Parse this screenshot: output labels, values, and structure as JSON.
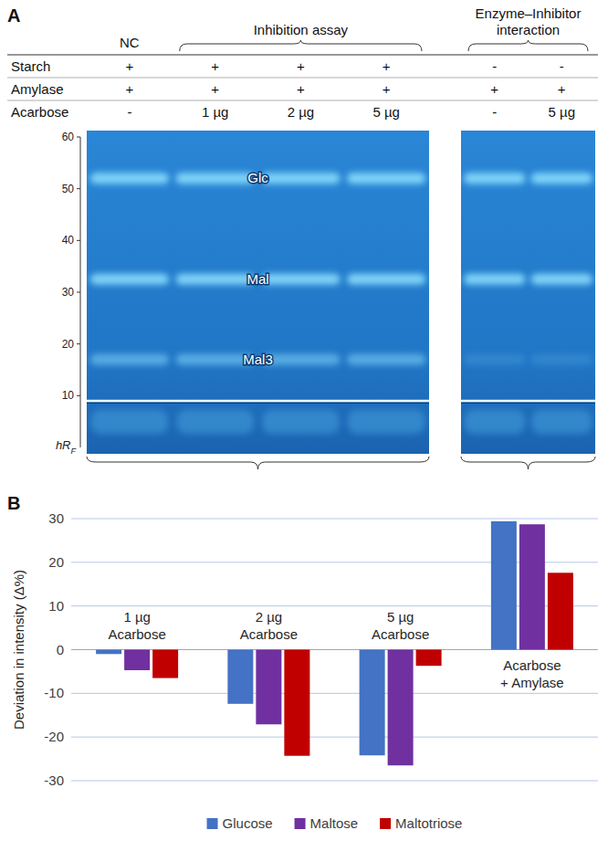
{
  "panel_a": {
    "panel_label": "A",
    "row_labels": [
      "Starch",
      "Amylase",
      "Acarbose"
    ],
    "plates": [
      {
        "groups": [
          {
            "label": "NC",
            "lanes": [
              [
                "+",
                "+",
                "-"
              ]
            ]
          },
          {
            "label": "Inhibition assay",
            "lanes": [
              [
                "+",
                "+",
                "1 µg"
              ],
              [
                "+",
                "+",
                "2 µg"
              ],
              [
                "+",
                "+",
                "5 µg"
              ]
            ]
          }
        ]
      },
      {
        "groups": [
          {
            "label": "Enzyme–Inhibitor interaction",
            "lanes": [
              [
                "-",
                "+",
                "-"
              ],
              [
                "-",
                "+",
                "5 µg"
              ]
            ]
          }
        ]
      }
    ],
    "hrf_axis": {
      "label": "hR",
      "label_sub": "F",
      "ylim": [
        0,
        60
      ],
      "yticks": [
        10,
        20,
        30,
        40,
        50,
        60
      ]
    },
    "bands": [
      {
        "label": "Glc",
        "hrf": 52
      },
      {
        "label": "Mal",
        "hrf": 32.5
      },
      {
        "label": "Mal3",
        "hrf": 17
      }
    ],
    "application_line_hrf": 9
  },
  "chart_data": {
    "type": "bar",
    "panel_label": "B",
    "y_label": "Deviation in intensity (Δ%)",
    "categories": [
      "1 µg\nAcarbose",
      "2 µg\nAcarbose",
      "5 µg\nAcarbose",
      "Acarbose\n+ Amylase"
    ],
    "series": [
      {
        "name": "Glucose",
        "color": "#4472C4",
        "values": [
          -1.0,
          -12.4,
          -24.2,
          29.4
        ]
      },
      {
        "name": "Maltose",
        "color": "#7030A0",
        "values": [
          -4.7,
          -17.1,
          -26.5,
          28.7
        ]
      },
      {
        "name": "Maltotriose",
        "color": "#C00000",
        "values": [
          -6.5,
          -24.3,
          -3.7,
          17.6
        ]
      }
    ],
    "ylim": [
      -30,
      30
    ],
    "yticks": [
      -30,
      -20,
      -10,
      0,
      10,
      20,
      30
    ],
    "grid": true,
    "legend": "bottom"
  }
}
